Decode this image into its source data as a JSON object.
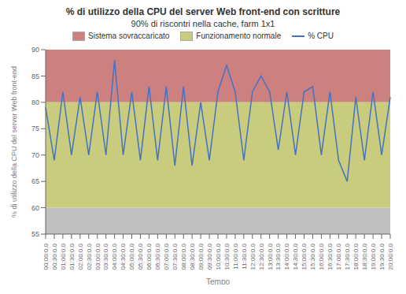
{
  "chart_data": {
    "type": "line",
    "title": "% di utilizzo della CPU del server Web front-end con scritture",
    "subtitle": "90% di riscontri nella cache, farm 1x1",
    "xlabel": "Tempo",
    "ylabel": "% di utilizzo della CPU del server Web front-end",
    "categories": [
      "00:00:0.0",
      "00:30:0.0",
      "01:00:0.0",
      "01:30:0.0",
      "02:00:0.0",
      "02:30:0.0",
      "03:00:0.0",
      "03:30:0.0",
      "04:00:0.0",
      "04:30:0.0",
      "05:00:0.0",
      "05:30:0.0",
      "06:00:0.0",
      "06:30:0.0",
      "07:00:0.0",
      "07:30:0.0",
      "08:00:0.0",
      "08:30:0.0",
      "09:00:0.0",
      "09:30:0.0",
      "10:00:0.0",
      "10:30:0.0",
      "11:00:0.0",
      "11:30:0.0",
      "12:00:0.0",
      "12:30:0.0",
      "13:00:0.0",
      "13:30:0.0",
      "14:00:0.0",
      "14:30:0.0",
      "15:00:0.0",
      "15:30:0.0",
      "16:00:0.0",
      "16:30:0.0",
      "17:00:0.0",
      "17:30:0.0",
      "18:00:0.0",
      "18:30:0.0",
      "19:00:0.0",
      "19:30:0.0",
      "20:00:0.0"
    ],
    "series": [
      {
        "name": "% CPU",
        "color": "#4472c4",
        "values": [
          79,
          69,
          82,
          70,
          81,
          70,
          82,
          70,
          88,
          70,
          82,
          69,
          83,
          69,
          83,
          68,
          83,
          68,
          80,
          69,
          82,
          87,
          82,
          69,
          82,
          85,
          82,
          71,
          82,
          70,
          82,
          83,
          70,
          82,
          69,
          65,
          81,
          69,
          82,
          70,
          81
        ]
      }
    ],
    "bands": [
      {
        "name": "Sistema sovraccaricato",
        "from": 80,
        "to": 90,
        "color": "#cd8080"
      },
      {
        "name": "Funzionamento normale",
        "from": 60,
        "to": 80,
        "color": "#c8cc7c"
      },
      {
        "from": 55,
        "to": 60,
        "color": "#c0c0c0"
      }
    ],
    "ylim": [
      55,
      90
    ],
    "yticks": [
      55,
      60,
      65,
      70,
      75,
      80,
      85,
      90
    ],
    "grid": false,
    "legend": "top"
  }
}
